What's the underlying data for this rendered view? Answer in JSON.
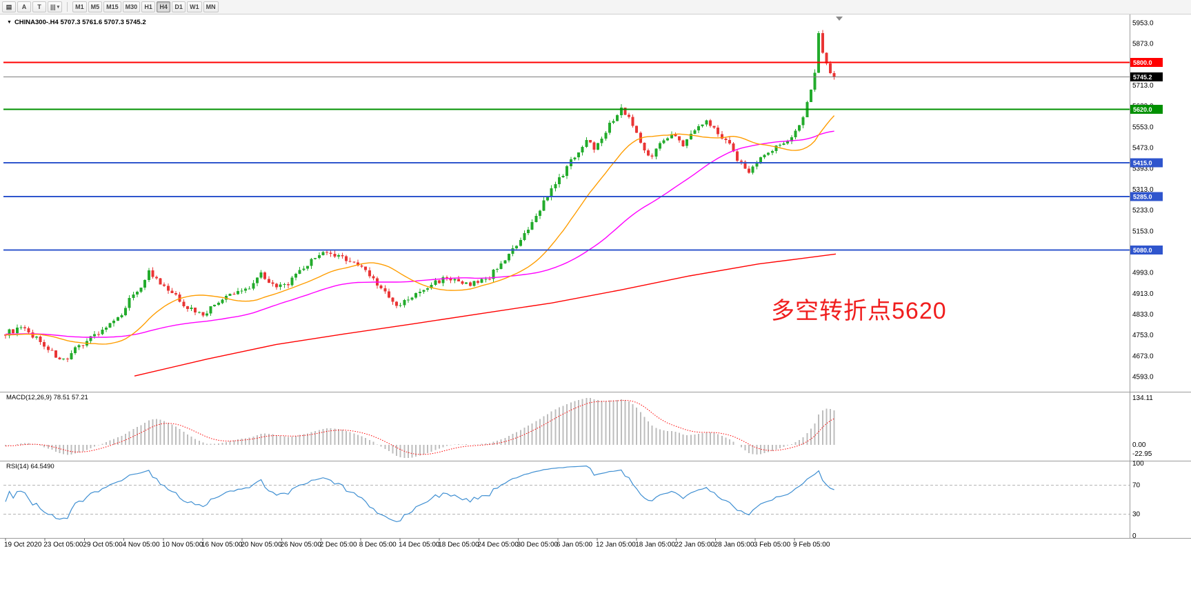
{
  "toolbar": {
    "icons": [
      {
        "name": "chart-window-icon",
        "glyph": "▤"
      },
      {
        "name": "text-label-icon",
        "glyph": "A"
      },
      {
        "name": "text-tool-icon",
        "glyph": "T"
      },
      {
        "name": "chart-type-icon",
        "glyph": "|||",
        "dropdown": "▾"
      }
    ],
    "timeframes": [
      {
        "label": "M1",
        "active": false
      },
      {
        "label": "M5",
        "active": false
      },
      {
        "label": "M15",
        "active": false
      },
      {
        "label": "M30",
        "active": false
      },
      {
        "label": "H1",
        "active": false
      },
      {
        "label": "H4",
        "active": true
      },
      {
        "label": "D1",
        "active": false
      },
      {
        "label": "W1",
        "active": false
      },
      {
        "label": "MN",
        "active": false
      }
    ]
  },
  "chart": {
    "symbol_dropdown_glyph": "▼",
    "symbol_line": "CHINA300-.H4 5707.3 5761.6 5707.3 5745.2",
    "annotation": {
      "text": "多空转折点5620",
      "color": "#f01e1e"
    },
    "chart_data": {
      "type": "candlestick",
      "symbol": "CHINA300-",
      "timeframe": "H4",
      "last_ohlc": {
        "open": 5707.3,
        "high": 5761.6,
        "low": 5707.3,
        "close": 5745.2
      },
      "current_price": 5745.2,
      "price_axis": {
        "min": 4593.0,
        "max": 5953.0,
        "tick_step": 80
      },
      "num_candles": 215,
      "visible_range": {
        "start": "19 Oct 2020",
        "end": "9 Feb 2021"
      },
      "colors": {
        "up": "#23ab2c",
        "down": "#e93535"
      },
      "close_anchors": [
        [
          0,
          4760
        ],
        [
          4,
          4778
        ],
        [
          8,
          4742
        ],
        [
          11,
          4700
        ],
        [
          13,
          4672
        ],
        [
          16,
          4650
        ],
        [
          18,
          4698
        ],
        [
          22,
          4745
        ],
        [
          25,
          4772
        ],
        [
          29,
          4812
        ],
        [
          32,
          4890
        ],
        [
          35,
          4942
        ],
        [
          37,
          4996
        ],
        [
          40,
          4946
        ],
        [
          44,
          4900
        ],
        [
          47,
          4858
        ],
        [
          51,
          4832
        ],
        [
          55,
          4880
        ],
        [
          58,
          4906
        ],
        [
          63,
          4938
        ],
        [
          66,
          4992
        ],
        [
          70,
          4932
        ],
        [
          73,
          4952
        ],
        [
          78,
          5022
        ],
        [
          81,
          5068
        ],
        [
          86,
          5052
        ],
        [
          89,
          5040
        ],
        [
          93,
          5002
        ],
        [
          96,
          4950
        ],
        [
          99,
          4895
        ],
        [
          101,
          4860
        ],
        [
          104,
          4890
        ],
        [
          107,
          4916
        ],
        [
          111,
          4956
        ],
        [
          114,
          4976
        ],
        [
          118,
          4946
        ],
        [
          121,
          4952
        ],
        [
          125,
          4976
        ],
        [
          128,
          5032
        ],
        [
          132,
          5092
        ],
        [
          136,
          5180
        ],
        [
          139,
          5268
        ],
        [
          143,
          5350
        ],
        [
          146,
          5420
        ],
        [
          150,
          5502
        ],
        [
          152,
          5472
        ],
        [
          155,
          5540
        ],
        [
          159,
          5622
        ],
        [
          161,
          5592
        ],
        [
          164,
          5492
        ],
        [
          167,
          5432
        ],
        [
          169,
          5498
        ],
        [
          172,
          5526
        ],
        [
          175,
          5482
        ],
        [
          178,
          5540
        ],
        [
          181,
          5586
        ],
        [
          184,
          5526
        ],
        [
          186,
          5506
        ],
        [
          189,
          5432
        ],
        [
          192,
          5378
        ],
        [
          194,
          5424
        ],
        [
          197,
          5452
        ],
        [
          200,
          5482
        ],
        [
          202,
          5506
        ],
        [
          205,
          5556
        ],
        [
          207,
          5640
        ],
        [
          209,
          5762
        ],
        [
          210,
          5906
        ],
        [
          211,
          5832
        ],
        [
          212,
          5788
        ],
        [
          213,
          5752
        ],
        [
          214,
          5745.2
        ]
      ],
      "moving_averages": {
        "fast": {
          "color": "#ff9d00",
          "period": 21
        },
        "medium": {
          "color": "#ff00ff",
          "period": 55
        },
        "slow": {
          "color": "#ff0000",
          "anchors_x_price": [
            [
              195,
              4595
            ],
            [
              300,
              4660
            ],
            [
              400,
              4716
            ],
            [
              500,
              4757
            ],
            [
              600,
              4796
            ],
            [
              700,
              4836
            ],
            [
              800,
              4876
            ],
            [
              900,
              4926
            ],
            [
              1000,
              4980
            ],
            [
              1100,
              5026
            ],
            [
              1160,
              5046
            ],
            [
              1212,
              5064
            ]
          ]
        }
      },
      "levels": [
        {
          "value": 5800.0,
          "color": "#ff0000"
        },
        {
          "value": 5620.0,
          "color": "#009000"
        },
        {
          "value": 5415.0,
          "color": "#2f55cd"
        },
        {
          "value": 5285.0,
          "color": "#2f55cd"
        },
        {
          "value": 5080.0,
          "color": "#2f55cd"
        }
      ],
      "indicators": [
        {
          "name": "MACD",
          "params": "12,26,9",
          "main": 78.51,
          "signal": 57.21,
          "range_max": 134.11,
          "range_min": -22.95
        },
        {
          "name": "RSI",
          "params": "14",
          "value": 64.549,
          "range": [
            0,
            100
          ],
          "levels": [
            70,
            30
          ]
        }
      ]
    }
  },
  "macd": {
    "label": "MACD(12,26,9) 78.51 57.21",
    "axis_max": "134.11",
    "axis_zero": "0.00",
    "axis_min": "-22.95",
    "histogram_color": "#bdbdbd",
    "signal_color": "#ff0000"
  },
  "rsi": {
    "label": "RSI(14) 64.5490",
    "axis": [
      "100",
      "70",
      "30",
      "0"
    ],
    "levels": [
      70,
      30
    ],
    "line_color": "#3f8fd2"
  },
  "time_axis": [
    "19 Oct 2020",
    "23 Oct 05:00",
    "29 Oct 05:00",
    "4 Nov 05:00",
    "10 Nov 05:00",
    "16 Nov 05:00",
    "20 Nov 05:00",
    "26 Nov 05:00",
    "2 Dec 05:00",
    "8 Dec 05:00",
    "14 Dec 05:00",
    "18 Dec 05:00",
    "24 Dec 05:00",
    "30 Dec 05:00",
    "6 Jan 05:00",
    "12 Jan 05:00",
    "18 Jan 05:00",
    "22 Jan 05:00",
    "28 Jan 05:00",
    "3 Feb 05:00",
    "9 Feb 05:00"
  ]
}
